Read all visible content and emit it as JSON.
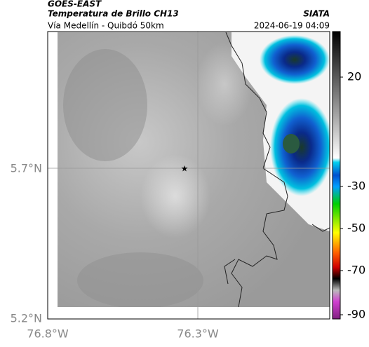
{
  "header": {
    "source": "GOES-EAST",
    "title": "Temperatura de Brillo CH13",
    "brand": "SIATA",
    "subtitle": "Vía Medellín - Quibdó 50km",
    "timestamp": "2024-06-19 04:09"
  },
  "map": {
    "lat_labels": [
      "5.7°N",
      "5.2°N"
    ],
    "lon_labels": [
      "76.8°W",
      "76.3°W"
    ]
  },
  "colorbar": {
    "labels": [
      "20",
      "-30",
      "-50",
      "-70",
      "-90"
    ]
  }
}
